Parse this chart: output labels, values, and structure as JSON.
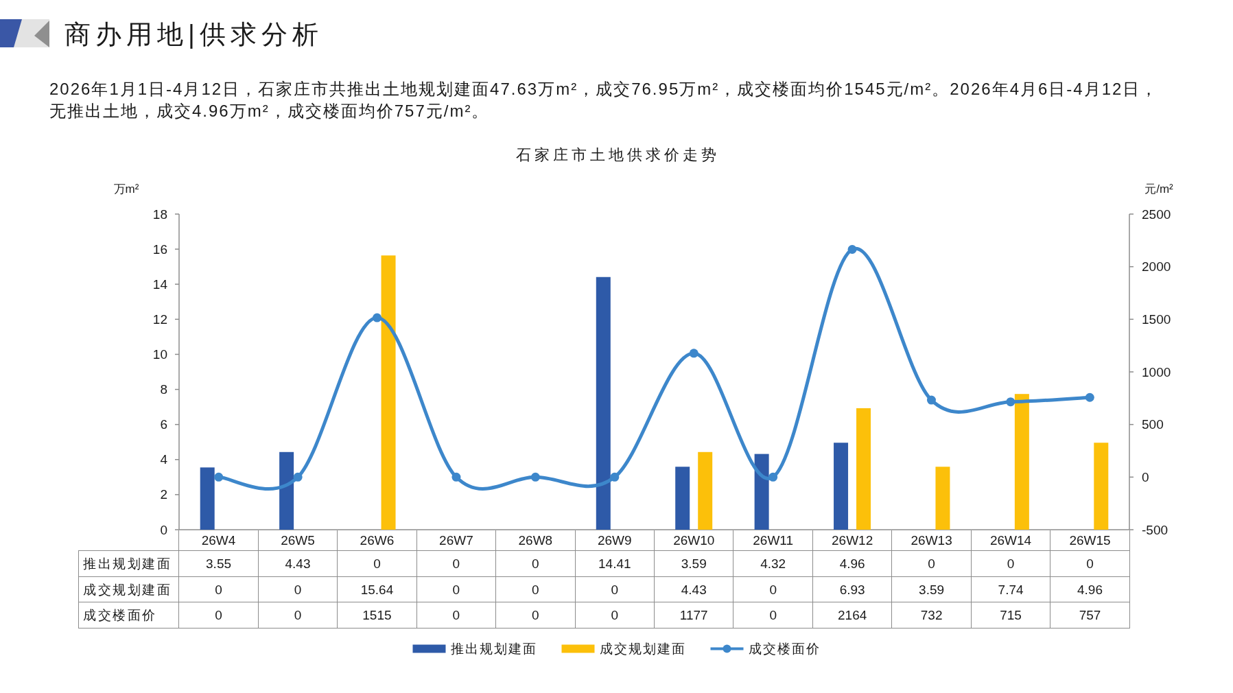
{
  "chart_data": {
    "type": "bar",
    "title": "石家庄市土地供求价走势",
    "ylabel": "万m²",
    "y2label": "元/m²",
    "annotations": [
      "商办用地|供求分析",
      "2026年1月1日-4月12日，石家庄市共推出土地规划建面47.63万m²，成交76.95万m²，成交楼面均价1545元/m²。2026年4月6日-4月12日，无推出土地，成交4.96万m²，成交楼面均价757元/m²。"
    ],
    "categories": [
      "26W4",
      "26W5",
      "26W6",
      "26W7",
      "26W8",
      "26W9",
      "26W10",
      "26W11",
      "26W12",
      "26W13",
      "26W14",
      "26W15"
    ],
    "series": [
      {
        "name": "推出规划建面",
        "color": "#2e5aa8",
        "values": [
          3.55,
          4.43,
          0,
          0,
          0,
          14.41,
          3.59,
          4.32,
          4.96,
          0,
          0,
          0
        ]
      },
      {
        "name": "成交规划建面",
        "color": "#fcc00a",
        "values": [
          0,
          0,
          15.64,
          0,
          0,
          0,
          4.43,
          0,
          6.93,
          3.59,
          7.74,
          4.96
        ]
      },
      {
        "type": "line",
        "axis": "y2",
        "name": "成交楼面价",
        "color": "#3d87cb",
        "marker": "circle",
        "line_style": "solid",
        "values": [
          0,
          0,
          1515,
          0,
          0,
          0,
          1177,
          0,
          2164,
          732,
          715,
          757
        ]
      }
    ],
    "ylim": [
      0,
      18
    ],
    "yticks": [
      0,
      2,
      4,
      6,
      8,
      10,
      12,
      14,
      16,
      18
    ],
    "y2lim": [
      -500,
      2500
    ],
    "y2ticks": [
      -500,
      0,
      500,
      1000,
      1500,
      2000,
      2500
    ],
    "data_labels": true,
    "legend": "bottom"
  }
}
